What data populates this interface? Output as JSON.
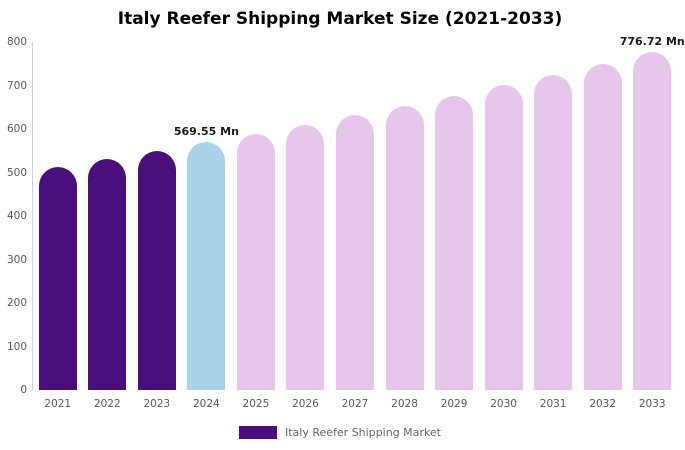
{
  "title": "Italy Reefer Shipping Market Size (2021-2033)",
  "legend": {
    "label": "Italy Reefer Shipping Market",
    "swatch_color": "#4a0f7d"
  },
  "colors": {
    "historical_bar": "#4a0f7d",
    "current_bar": "#a9d3e9",
    "forecast_bar": "#e7c6eb",
    "axis_text": "#595959",
    "axis_line": "#cfcfcf"
  },
  "chart_data": {
    "type": "bar",
    "title": "Italy Reefer Shipping Market Size (2021-2033)",
    "categories": [
      "2021",
      "2022",
      "2023",
      "2024",
      "2025",
      "2026",
      "2027",
      "2028",
      "2029",
      "2030",
      "2031",
      "2032",
      "2033"
    ],
    "values": [
      513.7,
      531.7,
      550.3,
      569.55,
      589.5,
      610.1,
      631.5,
      653.5,
      676.4,
      700.1,
      724.5,
      750.1,
      776.72
    ],
    "unit": "Mn",
    "bar_colors": [
      "#4a0f7d",
      "#4a0f7d",
      "#4a0f7d",
      "#a9d3e9",
      "#e7c6eb",
      "#e7c6eb",
      "#e7c6eb",
      "#e7c6eb",
      "#e7c6eb",
      "#e7c6eb",
      "#e7c6eb",
      "#e7c6eb",
      "#e7c6eb"
    ],
    "xlabel": "",
    "ylabel": "",
    "ylim": [
      0,
      800
    ],
    "ytick_step": 100,
    "grid": false,
    "legend_position": "bottom",
    "legend_entries": [
      "Italy Reefer Shipping Market"
    ],
    "annotations": [
      {
        "category": "2024",
        "text": "569.55 Mn"
      },
      {
        "category": "2033",
        "text": "776.72 Mn"
      }
    ]
  }
}
